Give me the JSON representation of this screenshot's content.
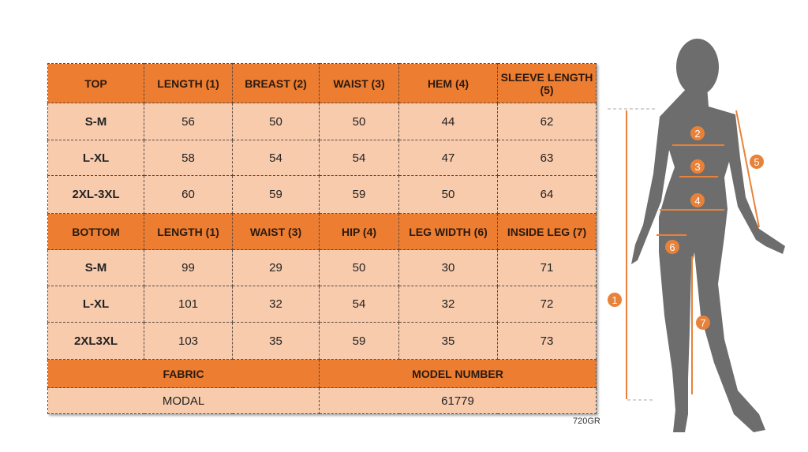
{
  "colors": {
    "header": "#ed7d31",
    "cell": "#f8cbad",
    "silhouette": "#6d6d6d",
    "measure": "#e8823a"
  },
  "top": {
    "headers": [
      "TOP",
      "LENGTH (1)",
      "BREAST (2)",
      "WAIST (3)",
      "HEM (4)",
      "SLEEVE LENGTH (5)"
    ],
    "rows": [
      [
        "S-M",
        "56",
        "50",
        "50",
        "44",
        "62"
      ],
      [
        "L-XL",
        "58",
        "54",
        "54",
        "47",
        "63"
      ],
      [
        "2XL-3XL",
        "60",
        "59",
        "59",
        "50",
        "64"
      ]
    ]
  },
  "bottom": {
    "headers": [
      "BOTTOM",
      "LENGTH (1)",
      "WAIST (3)",
      "HIP (4)",
      "LEG WIDTH (6)",
      "INSIDE LEG (7)"
    ],
    "rows": [
      [
        "S-M",
        "99",
        "29",
        "50",
        "30",
        "71"
      ],
      [
        "L-XL",
        "101",
        "32",
        "54",
        "32",
        "72"
      ],
      [
        "2XL3XL",
        "103",
        "35",
        "59",
        "35",
        "73"
      ]
    ]
  },
  "info": {
    "fabric_label": "FABRIC",
    "model_label": "MODEL NUMBER",
    "fabric": "MODAL",
    "model": "61779"
  },
  "code": "720GR",
  "figure": {
    "markers": [
      "1",
      "2",
      "3",
      "4",
      "5",
      "6",
      "7"
    ]
  }
}
